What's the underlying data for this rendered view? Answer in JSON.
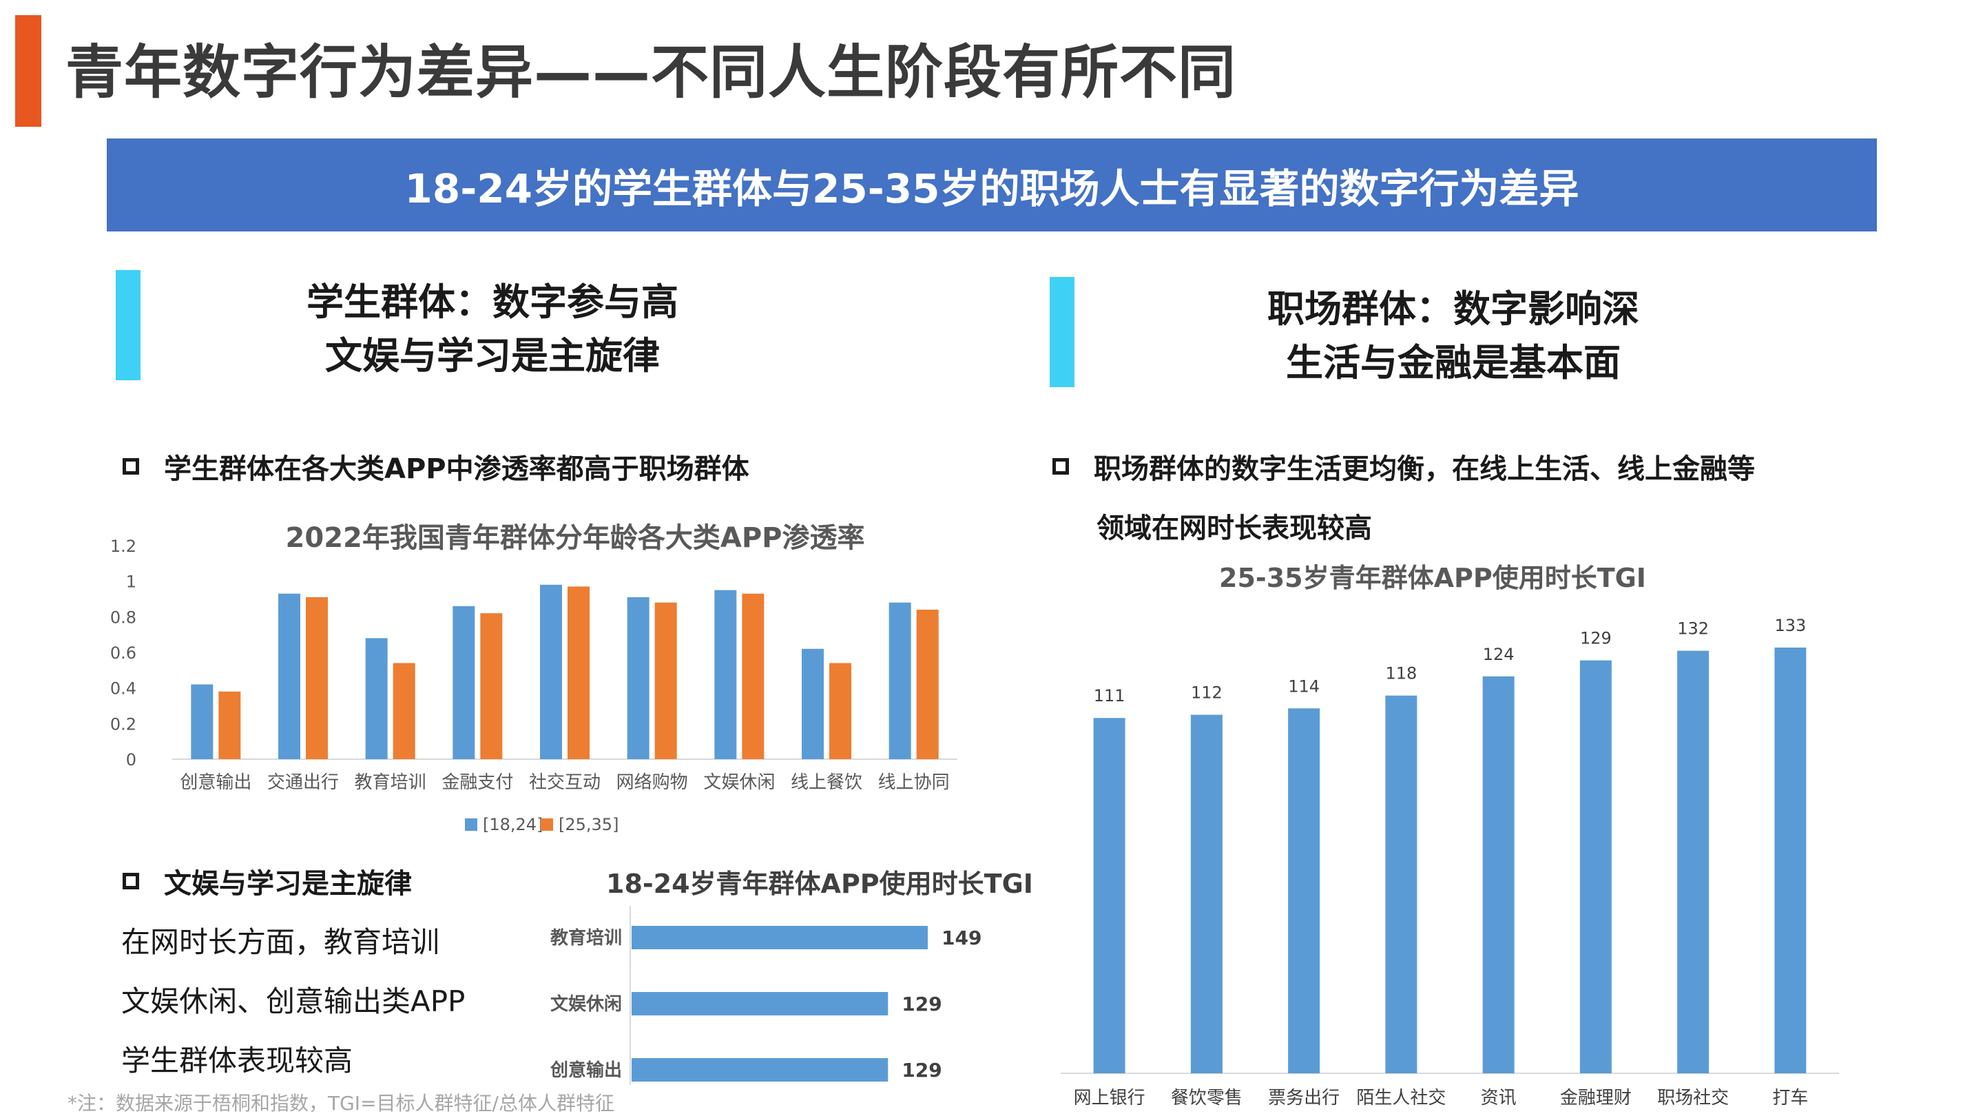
{
  "page_title": "青年数字行为差异——不同人生阶段有所不同",
  "banner_text": "18-24岁的学生群体与25-35岁的职场人士有显著的数字行为差异",
  "left_heading": {
    "line1": "学生群体：数字参与高",
    "line2": "文娱与学习是主旋律"
  },
  "right_heading": {
    "line1": "职场群体：数字影响深",
    "line2": "生活与金融是基本面"
  },
  "left_bullet1": "学生群体在各大类APP中渗透率都高于职场群体",
  "left_bullet2": "文娱与学习是主旋律",
  "left_body": [
    "在网时长方面，教育培训",
    "文娱休闲、创意输出类APP",
    "学生群体表现较高"
  ],
  "right_bullet": {
    "line1": "职场群体的数字生活更均衡，在线上生活、线上金融等",
    "line2": "领域在网时长表现较高"
  },
  "footnote": "*注：数据来源于梧桐和指数，TGI=目标人群特征/总体人群特征",
  "colors": {
    "blue": "#5b9bd5",
    "orange": "#ed7d31",
    "banner": "#4472c4",
    "accent": "#e8571f",
    "side": "#3fd0f5"
  },
  "chart_data": [
    {
      "type": "bar",
      "title": "2022年我国青年群体分年龄各大类APP渗透率",
      "categories": [
        "创意输出",
        "交通出行",
        "教育培训",
        "金融支付",
        "社交互动",
        "网络购物",
        "文娱休闲",
        "线上餐饮",
        "线上协同"
      ],
      "series": [
        {
          "name": "[18,24]",
          "values": [
            0.42,
            0.93,
            0.68,
            0.86,
            0.98,
            0.91,
            0.95,
            0.62,
            0.88
          ],
          "color": "#5b9bd5"
        },
        {
          "name": "[25,35]",
          "values": [
            0.38,
            0.91,
            0.54,
            0.82,
            0.97,
            0.88,
            0.93,
            0.54,
            0.84
          ],
          "color": "#ed7d31"
        }
      ],
      "ylim": [
        0,
        1.2
      ],
      "yticks": [
        "0",
        "0.2",
        "0.4",
        "0.6",
        "0.8",
        "1",
        "1.2"
      ],
      "legend": "bottom",
      "grid": false
    },
    {
      "type": "bar",
      "orientation": "horizontal",
      "title": "18-24岁青年群体APP使用时长TGI",
      "categories": [
        "教育培训",
        "文娱休闲",
        "创意输出"
      ],
      "values": [
        149,
        129,
        129
      ],
      "color": "#5b9bd5"
    },
    {
      "type": "bar",
      "title": "25-35岁青年群体APP使用时长TGI",
      "categories": [
        "网上银行",
        "餐饮零售",
        "票务出行",
        "陌生人社交",
        "资讯",
        "金融理财",
        "职场社交",
        "打车"
      ],
      "values": [
        111,
        112,
        114,
        118,
        124,
        129,
        132,
        133
      ],
      "color": "#5b9bd5"
    }
  ]
}
